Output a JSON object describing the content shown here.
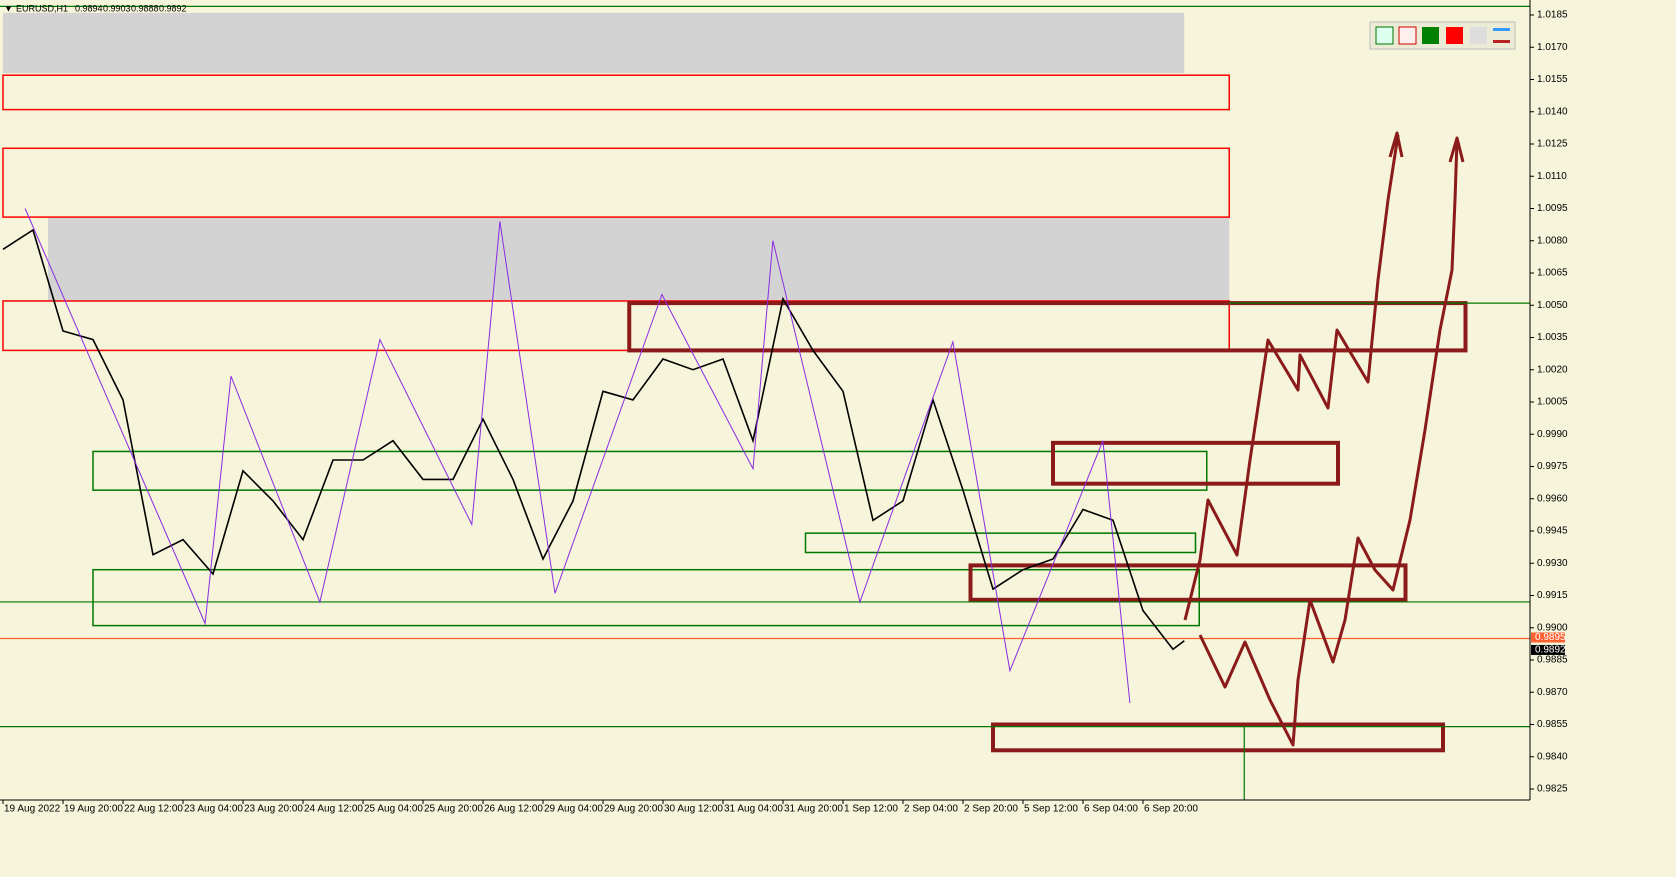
{
  "chart_data": {
    "type": "line",
    "symbol": "EURUSD,H1",
    "ohlc": [
      0.9894,
      0.9903,
      0.9888,
      0.9892
    ],
    "xlim": [
      -0.8,
      407.2
    ],
    "ylim": [
      0.9825,
      1.0185
    ],
    "xticks": [
      {
        "value": 0,
        "label": "19 Aug 2022"
      },
      {
        "value": 16,
        "label": "19 Aug 20:00"
      },
      {
        "value": 32,
        "label": "22 Aug 12:00"
      },
      {
        "value": 48,
        "label": "23 Aug 04:00"
      },
      {
        "value": 64,
        "label": "23 Aug 20:00"
      },
      {
        "value": 80,
        "label": "24 Aug 12:00"
      },
      {
        "value": 96,
        "label": "25 Aug 04:00"
      },
      {
        "value": 112,
        "label": "25 Aug 20:00"
      },
      {
        "value": 128,
        "label": "26 Aug 12:00"
      },
      {
        "value": 144,
        "label": "29 Aug 04:00"
      },
      {
        "value": 160,
        "label": "29 Aug 20:00"
      },
      {
        "value": 176,
        "label": "30 Aug 12:00"
      },
      {
        "value": 192,
        "label": "31 Aug 04:00"
      },
      {
        "value": 208,
        "label": "31 Aug 20:00"
      },
      {
        "value": 224,
        "label": "1 Sep 12:00"
      },
      {
        "value": 240,
        "label": "2 Sep 04:00"
      },
      {
        "value": 256,
        "label": "2 Sep 20:00"
      },
      {
        "value": 272,
        "label": "5 Sep 12:00"
      },
      {
        "value": 288,
        "label": "6 Sep 04:00"
      },
      {
        "value": 304,
        "label": "6 Sep 20:00"
      }
    ],
    "yticks": [
      1.0185,
      {
        "value": 1.017,
        "label": "1.0170"
      },
      1.0155,
      {
        "value": 1.014,
        "label": "1.0140"
      },
      1.0125,
      {
        "value": 1.011,
        "label": "1.0110"
      },
      1.0095,
      {
        "value": 1.008,
        "label": "1.0080"
      },
      1.0065,
      {
        "value": 1.005,
        "label": "1.0050"
      },
      1.0035,
      {
        "value": 1.002,
        "label": "1.0020"
      },
      1.0005,
      {
        "value": 0.999,
        "label": "0.9990"
      },
      0.9975,
      {
        "value": 0.996,
        "label": "0.9960"
      },
      0.9945,
      {
        "value": 0.993,
        "label": "0.9930"
      },
      0.9915,
      {
        "value": 0.99,
        "label": "0.9900"
      },
      0.9885,
      {
        "value": 0.987,
        "label": "0.9870"
      },
      0.9855,
      {
        "value": 0.984,
        "label": "0.9840"
      },
      0.9825
    ],
    "series": [
      {
        "name": "close",
        "color": "#000000",
        "x": [
          0,
          8,
          16,
          24,
          32,
          40,
          48,
          56,
          64,
          72,
          80,
          88,
          96,
          104,
          112,
          120,
          128,
          136,
          144,
          152,
          160,
          168,
          176,
          184,
          192,
          200,
          208,
          216,
          224,
          232,
          240,
          248,
          256,
          264,
          272,
          280,
          288,
          296,
          304,
          312,
          315
        ],
        "values": [
          1.0076,
          1.0085,
          1.0038,
          1.0034,
          1.0006,
          0.9934,
          0.9941,
          0.9925,
          0.9973,
          0.9959,
          0.9941,
          0.9978,
          0.9978,
          0.9987,
          0.9969,
          0.9969,
          0.9997,
          0.9969,
          0.9932,
          0.9959,
          1.001,
          1.0006,
          1.0025,
          1.002,
          1.0025,
          0.9987,
          1.0053,
          1.0029,
          1.001,
          0.995,
          0.9959,
          1.0006,
          0.9964,
          0.9918,
          0.9927,
          0.9932,
          0.9955,
          0.995,
          0.9908,
          0.989,
          0.9894
        ]
      },
      {
        "name": "zigzag",
        "color": "#8a2be2",
        "x": [
          5.9,
          53.9,
          60.8,
          84.5,
          100.5,
          125,
          132.5,
          147.2,
          175.7,
          200,
          205.3,
          228.5,
          253.3,
          268.5,
          293.3,
          300.5
        ],
        "values": [
          1.0095,
          0.9902,
          1.0017,
          0.9912,
          1.0034,
          0.9948,
          1.0089,
          0.9916,
          1.0055,
          0.9974,
          1.008,
          0.9912,
          1.0033,
          0.988,
          0.9987,
          0.9865
        ]
      }
    ],
    "zones": [
      {
        "x": [
          0,
          315
        ],
        "y": [
          1.0158,
          1.0186
        ],
        "color": "#d3d3d3",
        "kind": "fill"
      },
      {
        "x": [
          12,
          327
        ],
        "y": [
          1.0052,
          1.0091
        ],
        "color": "#d3d3d3",
        "kind": "fill"
      },
      {
        "x": [
          0,
          327
        ],
        "y": [
          1.0141,
          1.0157
        ],
        "color": "#ff0000",
        "kind": "thin"
      },
      {
        "x": [
          0,
          327
        ],
        "y": [
          1.0091,
          1.0123
        ],
        "color": "#ff0000",
        "kind": "thin"
      },
      {
        "x": [
          0,
          327
        ],
        "y": [
          1.0029,
          1.0052
        ],
        "color": "#ff0000",
        "kind": "thin"
      },
      {
        "x": [
          24,
          321
        ],
        "y": [
          0.9964,
          0.9982
        ],
        "color": "#007700",
        "kind": "thin"
      },
      {
        "x": [
          214,
          318
        ],
        "y": [
          0.9935,
          0.9944
        ],
        "color": "#007700",
        "kind": "thin"
      },
      {
        "x": [
          24,
          319
        ],
        "y": [
          0.9901,
          0.9927
        ],
        "color": "#007700",
        "kind": "thin"
      },
      {
        "x": [
          167,
          390
        ],
        "y": [
          1.0029,
          1.0051
        ],
        "color": "#8b1a1a",
        "kind": "thick"
      },
      {
        "x": [
          280,
          356
        ],
        "y": [
          0.9967,
          0.9986
        ],
        "color": "#8b1a1a",
        "kind": "thick"
      },
      {
        "x": [
          258,
          374
        ],
        "y": [
          0.9913,
          0.9929
        ],
        "color": "#8b1a1a",
        "kind": "thick"
      },
      {
        "x": [
          264,
          384
        ],
        "y": [
          0.9843,
          0.9855
        ],
        "color": "#8b1a1a",
        "kind": "thick"
      }
    ],
    "levels": [
      {
        "x": [
          -0.8,
          407.2
        ],
        "y": 1.0189,
        "color": "#007700"
      },
      {
        "x": [
          327,
          407.2
        ],
        "y": 1.0051,
        "color": "#007700"
      },
      {
        "x": [
          -0.8,
          407.2
        ],
        "y": 0.9912,
        "color": "#007700"
      },
      {
        "x": [
          -0.8,
          407.2
        ],
        "y": 0.9854,
        "color": "#007700"
      },
      {
        "x": [
          -0.8,
          407.2
        ],
        "y": 0.9895,
        "color": "#ff6030"
      }
    ],
    "vlines": [
      {
        "x": 331,
        "y": [
          0.982,
          0.9854
        ],
        "color": "#007700"
      }
    ],
    "price_labels": [
      {
        "value": 0.9895,
        "color": "#ff6030"
      },
      {
        "value": 0.9892,
        "color": "#000000"
      }
    ]
  }
}
